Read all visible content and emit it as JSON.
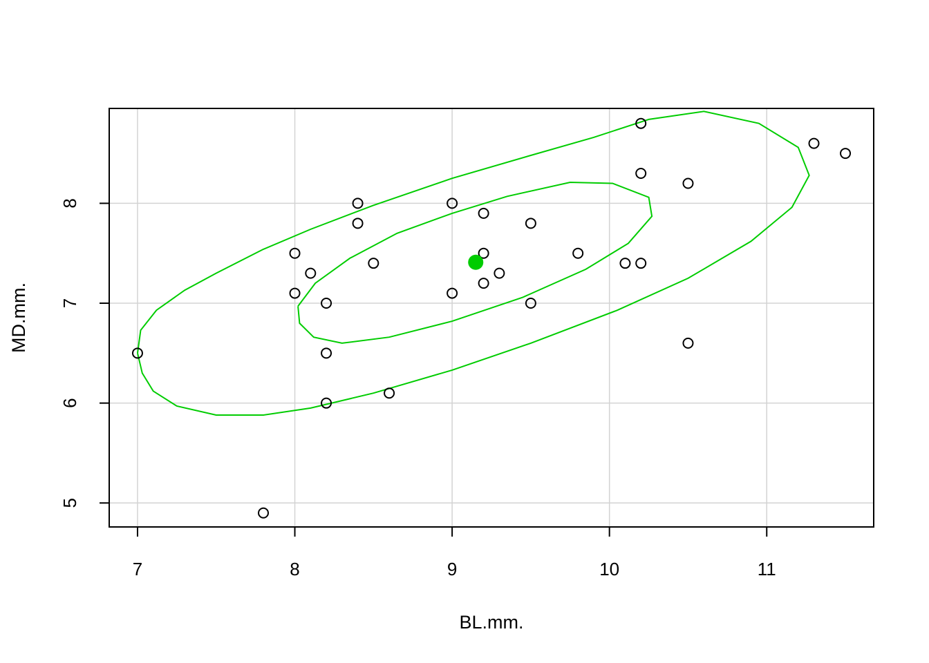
{
  "chart_data": {
    "type": "scatter",
    "title": "",
    "xlabel": "BL.mm.",
    "ylabel": "MD.mm.",
    "xlim": [
      6.82,
      11.68
    ],
    "ylim": [
      4.76,
      8.95
    ],
    "xticks": [
      7,
      8,
      9,
      10,
      11
    ],
    "yticks": [
      5,
      6,
      7,
      8
    ],
    "grid": true,
    "points": [
      {
        "x": 7.0,
        "y": 6.5
      },
      {
        "x": 7.8,
        "y": 4.9
      },
      {
        "x": 8.0,
        "y": 7.5
      },
      {
        "x": 8.0,
        "y": 7.1
      },
      {
        "x": 8.1,
        "y": 7.3
      },
      {
        "x": 8.2,
        "y": 7.0
      },
      {
        "x": 8.2,
        "y": 6.5
      },
      {
        "x": 8.2,
        "y": 6.0
      },
      {
        "x": 8.4,
        "y": 8.0
      },
      {
        "x": 8.4,
        "y": 7.8
      },
      {
        "x": 8.5,
        "y": 7.4
      },
      {
        "x": 8.6,
        "y": 6.1
      },
      {
        "x": 9.0,
        "y": 8.0
      },
      {
        "x": 9.0,
        "y": 7.1
      },
      {
        "x": 9.2,
        "y": 7.9
      },
      {
        "x": 9.2,
        "y": 7.5
      },
      {
        "x": 9.2,
        "y": 7.2
      },
      {
        "x": 9.3,
        "y": 7.3
      },
      {
        "x": 9.5,
        "y": 7.8
      },
      {
        "x": 9.5,
        "y": 7.0
      },
      {
        "x": 9.8,
        "y": 7.5
      },
      {
        "x": 10.1,
        "y": 7.4
      },
      {
        "x": 10.2,
        "y": 8.8
      },
      {
        "x": 10.2,
        "y": 8.3
      },
      {
        "x": 10.2,
        "y": 7.4
      },
      {
        "x": 10.5,
        "y": 8.2
      },
      {
        "x": 10.5,
        "y": 6.6
      },
      {
        "x": 11.3,
        "y": 8.6
      },
      {
        "x": 11.5,
        "y": 8.5
      }
    ],
    "centroid": {
      "x": 9.15,
      "y": 7.41
    },
    "ellipses": [
      {
        "name": "",
        "points": [
          [
            7.0,
            6.5
          ],
          [
            7.02,
            6.73
          ],
          [
            7.12,
            6.93
          ],
          [
            7.3,
            7.13
          ],
          [
            7.5,
            7.3
          ],
          [
            7.8,
            7.54
          ],
          [
            8.1,
            7.74
          ],
          [
            8.5,
            7.98
          ],
          [
            9.0,
            8.25
          ],
          [
            9.5,
            8.48
          ],
          [
            9.9,
            8.66
          ],
          [
            10.25,
            8.84
          ],
          [
            10.6,
            8.92
          ],
          [
            10.95,
            8.8
          ],
          [
            11.2,
            8.56
          ],
          [
            11.27,
            8.28
          ],
          [
            11.16,
            7.96
          ],
          [
            10.9,
            7.62
          ],
          [
            10.5,
            7.25
          ],
          [
            10.05,
            6.93
          ],
          [
            9.5,
            6.6
          ],
          [
            9.0,
            6.33
          ],
          [
            8.5,
            6.1
          ],
          [
            8.1,
            5.95
          ],
          [
            7.8,
            5.88
          ],
          [
            7.5,
            5.88
          ],
          [
            7.25,
            5.97
          ],
          [
            7.1,
            6.12
          ],
          [
            7.03,
            6.3
          ],
          [
            7.0,
            6.5
          ]
        ]
      },
      {
        "name": "",
        "points": [
          [
            8.02,
            6.97
          ],
          [
            8.13,
            7.2
          ],
          [
            8.35,
            7.45
          ],
          [
            8.65,
            7.7
          ],
          [
            9.0,
            7.9
          ],
          [
            9.35,
            8.07
          ],
          [
            9.75,
            8.21
          ],
          [
            10.02,
            8.2
          ],
          [
            10.25,
            8.06
          ],
          [
            10.27,
            7.87
          ],
          [
            10.12,
            7.6
          ],
          [
            9.85,
            7.34
          ],
          [
            9.45,
            7.06
          ],
          [
            9.0,
            6.82
          ],
          [
            8.6,
            6.66
          ],
          [
            8.3,
            6.6
          ],
          [
            8.12,
            6.66
          ],
          [
            8.03,
            6.8
          ],
          [
            8.02,
            6.97
          ]
        ]
      }
    ],
    "colors": {
      "ellipse": "#00cc00",
      "centroid": "#00cc00",
      "points": "#000000",
      "grid": "#d3d3d3",
      "axis": "#000000"
    }
  }
}
